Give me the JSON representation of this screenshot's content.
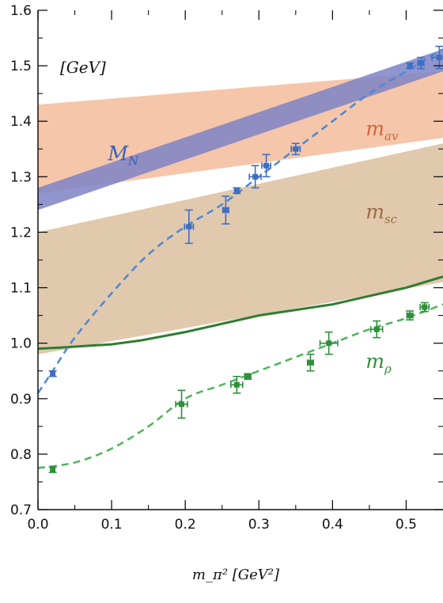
{
  "chart_data": {
    "type": "line",
    "unit_label": "[GeV]",
    "xlabel": "m_π² [GeV²]",
    "xlim": [
      0.0,
      0.55
    ],
    "ylim": [
      0.7,
      1.6
    ],
    "x_ticks": [
      "0.0",
      "0.1",
      "0.2",
      "0.3",
      "0.4",
      "0.5"
    ],
    "y_ticks": [
      "0.7",
      "0.8",
      "0.9",
      "1.0",
      "1.1",
      "1.2",
      "1.3",
      "1.4",
      "1.5",
      "1.6"
    ],
    "bands": [
      {
        "name": "m_av",
        "color": "#f2b893",
        "opacity": 0.8,
        "x": [
          0.0,
          0.55
        ],
        "lower": [
          1.27,
          1.37
        ],
        "upper": [
          1.43,
          1.49
        ]
      },
      {
        "name": "m_sc",
        "color": "#dcbf9f",
        "opacity": 0.85,
        "x": [
          0.0,
          0.55
        ],
        "lower": [
          0.98,
          1.11
        ],
        "upper": [
          1.2,
          1.36
        ]
      },
      {
        "name": "M_N",
        "color": "#7d83c6",
        "opacity": 0.85,
        "x": [
          0.0,
          0.55
        ],
        "lower": [
          1.24,
          1.49
        ],
        "upper": [
          1.28,
          1.53
        ]
      }
    ],
    "series": [
      {
        "name": "M_N",
        "color": "#3f6fc2",
        "line_color": "#4a88d6",
        "fit": {
          "x": [
            0.0,
            0.02,
            0.05,
            0.1,
            0.15,
            0.2,
            0.25,
            0.3,
            0.35,
            0.4,
            0.45,
            0.5,
            0.55
          ],
          "y": [
            0.91,
            0.95,
            1.01,
            1.09,
            1.16,
            1.21,
            1.25,
            1.3,
            1.35,
            1.4,
            1.45,
            1.49,
            1.53
          ]
        },
        "points": [
          {
            "x": 0.02,
            "y": 0.945,
            "ey": 0.005,
            "ex": 0.0
          },
          {
            "x": 0.205,
            "y": 1.21,
            "ey": 0.03,
            "ex": 0.006
          },
          {
            "x": 0.255,
            "y": 1.24,
            "ey": 0.025,
            "ex": 0.004
          },
          {
            "x": 0.27,
            "y": 1.275,
            "ey": 0.005,
            "ex": 0.0
          },
          {
            "x": 0.295,
            "y": 1.3,
            "ey": 0.02,
            "ex": 0.008
          },
          {
            "x": 0.31,
            "y": 1.32,
            "ey": 0.02,
            "ex": 0.006
          },
          {
            "x": 0.35,
            "y": 1.35,
            "ey": 0.01,
            "ex": 0.006
          },
          {
            "x": 0.505,
            "y": 1.5,
            "ey": 0.005,
            "ex": 0.0
          },
          {
            "x": 0.52,
            "y": 1.505,
            "ey": 0.01,
            "ex": 0.004
          },
          {
            "x": 0.545,
            "y": 1.515,
            "ey": 0.02,
            "ex": 0.01
          }
        ]
      },
      {
        "name": "m_ρ",
        "color": "#2f8f3c",
        "line_color": "#4fb35c",
        "fit": {
          "x": [
            0.0,
            0.05,
            0.1,
            0.15,
            0.2,
            0.25,
            0.3,
            0.35,
            0.4,
            0.45,
            0.5,
            0.55
          ],
          "y": [
            0.775,
            0.785,
            0.81,
            0.85,
            0.9,
            0.925,
            0.95,
            0.975,
            1.0,
            1.025,
            1.045,
            1.07
          ]
        },
        "points": [
          {
            "x": 0.02,
            "y": 0.772,
            "ey": 0.005,
            "ex": 0.0
          },
          {
            "x": 0.195,
            "y": 0.89,
            "ey": 0.025,
            "ex": 0.008
          },
          {
            "x": 0.27,
            "y": 0.925,
            "ey": 0.015,
            "ex": 0.008
          },
          {
            "x": 0.285,
            "y": 0.94,
            "ey": 0.005,
            "ex": 0.004
          },
          {
            "x": 0.37,
            "y": 0.965,
            "ey": 0.015,
            "ex": 0.004
          },
          {
            "x": 0.395,
            "y": 1.0,
            "ey": 0.02,
            "ex": 0.012
          },
          {
            "x": 0.46,
            "y": 1.025,
            "ey": 0.015,
            "ex": 0.008
          },
          {
            "x": 0.505,
            "y": 1.05,
            "ey": 0.008,
            "ex": 0.004
          },
          {
            "x": 0.525,
            "y": 1.065,
            "ey": 0.008,
            "ex": 0.006
          }
        ]
      }
    ],
    "solid_line": {
      "color": "#2e7d32",
      "x": [
        0.0,
        0.03,
        0.1,
        0.14,
        0.2,
        0.25,
        0.3,
        0.35,
        0.4,
        0.45,
        0.5,
        0.55
      ],
      "y": [
        0.99,
        0.992,
        0.998,
        1.005,
        1.02,
        1.035,
        1.05,
        1.06,
        1.07,
        1.085,
        1.1,
        1.12
      ]
    },
    "labels": [
      {
        "text": "M",
        "sub": "N",
        "x": 0.095,
        "y": 1.33,
        "color": "#3b5fb5"
      },
      {
        "text": "m",
        "sub": "av",
        "x": 0.445,
        "y": 1.375,
        "color": "#d0653a"
      },
      {
        "text": "m",
        "sub": "sc",
        "x": 0.445,
        "y": 1.225,
        "color": "#9d6a43"
      },
      {
        "text": "m",
        "sub": "ρ",
        "x": 0.445,
        "y": 0.955,
        "color": "#2f8f3c"
      }
    ]
  }
}
